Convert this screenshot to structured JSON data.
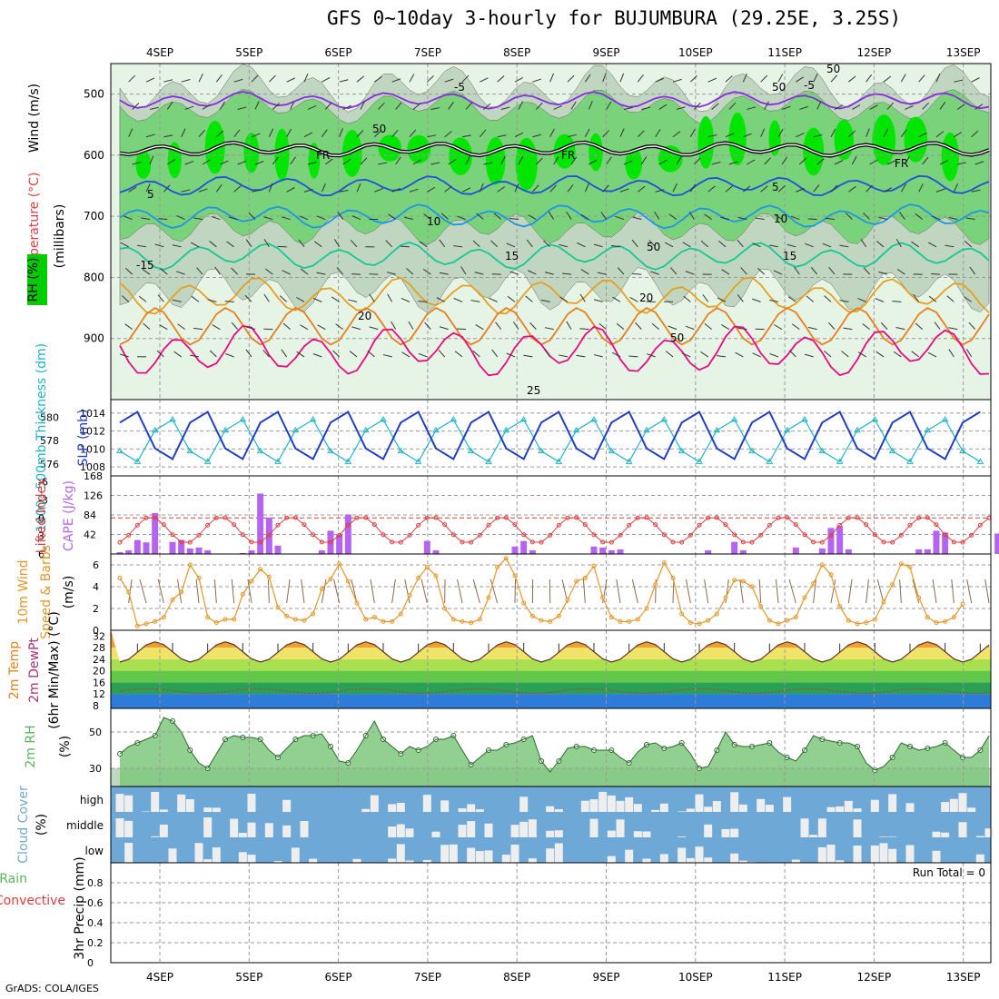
{
  "title": "GFS 0~10day 3-hourly for BUJUMBURA (29.25E, 3.25S)",
  "credit": "GrADS: COLA/IGES",
  "dates": [
    "4SEP",
    "5SEP",
    "6SEP",
    "7SEP",
    "8SEP",
    "9SEP",
    "10SEP",
    "11SEP",
    "12SEP",
    "13SEP"
  ],
  "colors": {
    "rh_light": "#e6f4e6",
    "rh_mid": "#c0d6c0",
    "rh_green": "#7ad27a",
    "rh_bright": "#00e600",
    "temp_purple": "#8a2be2",
    "temp_blue5": "#1e50dc",
    "temp_blue10": "#1e96e6",
    "temp_teal15": "#14c896",
    "temp_orange20": "#e6a020",
    "temp_orange": "#e68020",
    "temp_pink25": "#e60a82",
    "slp": "#1e3cc8",
    "thickness": "#1eb4c8",
    "lifted": "#e03c3c",
    "cape": "#b464f0",
    "wind": "#e69628",
    "rh2m": "#5ab45a",
    "cloud": "#6ea8d6"
  },
  "chart_data": [
    {
      "type": "contour",
      "name": "upper-air",
      "title": "Wind (m/s), Temperature (°C), RH (%)",
      "ylabel": "(millibars)",
      "ylim": [
        1000,
        450
      ],
      "yticks": [
        500,
        600,
        700,
        800,
        900
      ],
      "legend_labels": {
        "wind": "Wind (m/s)",
        "temperature": "Temperature (°C)",
        "rh": "RH (%)",
        "axis": "(millibars)"
      },
      "isotherms": [
        {
          "label": "-5",
          "mean_p": 510,
          "amp": 10
        },
        {
          "label": "FR",
          "mean_p": 590,
          "amp": 8
        },
        {
          "label": "5",
          "mean_p": 650,
          "amp": 12
        },
        {
          "label": "10",
          "mean_p": 700,
          "amp": 14
        },
        {
          "label": "15",
          "mean_p": 765,
          "amp": 16
        },
        {
          "label": "20",
          "mean_p": 830,
          "amp": 22
        },
        {
          "label": "25",
          "mean_p": 920,
          "amp": 30
        }
      ],
      "contour_labels": [
        "-5",
        "-5",
        "FR",
        "FR",
        "FR",
        "5",
        "5",
        "10",
        "10",
        "15",
        "15",
        "-15",
        "20",
        "20",
        "25",
        "50",
        "50",
        "50",
        "50",
        "50"
      ]
    },
    {
      "type": "line",
      "name": "slp-thickness",
      "series": [
        {
          "name": "SLP (mb)",
          "ylim": [
            1007,
            1015.5
          ],
          "yticks": [
            1008,
            1010,
            1012,
            1014
          ]
        },
        {
          "name": "1000~500mb Thickness (dm)",
          "ylim": [
            575,
            581.5
          ],
          "yticks": [
            576,
            578,
            580
          ]
        }
      ]
    },
    {
      "type": "bar+line",
      "name": "cape-lifted",
      "series": [
        {
          "name": "CAPE (J/kg)",
          "ylim": [
            0,
            168
          ],
          "yticks": [
            42,
            84,
            126,
            168
          ],
          "values": [
            4,
            8,
            30,
            25,
            88,
            0,
            26,
            30,
            12,
            14,
            8,
            0,
            0,
            0,
            2,
            8,
            130,
            78,
            18,
            0,
            0,
            0,
            0,
            8,
            50,
            42,
            85,
            0,
            0,
            0,
            0,
            0,
            0,
            0,
            0,
            28,
            8,
            0,
            0,
            0,
            0,
            0,
            0,
            0,
            0,
            16,
            28,
            8,
            0,
            0,
            0,
            0,
            0,
            0,
            16,
            14,
            8,
            10,
            0,
            0,
            0,
            0,
            0,
            0,
            0,
            0,
            0,
            8,
            0,
            0,
            26,
            8,
            0,
            0,
            0,
            0,
            0,
            14,
            0,
            0,
            12,
            56,
            60,
            10,
            0,
            0,
            0,
            0,
            0,
            0,
            0,
            10,
            10,
            50,
            46,
            0,
            0,
            0,
            0,
            0,
            44
          ]
        },
        {
          "name": "Lifted Index",
          "ylim": [
            6,
            -7
          ],
          "yticks": [
            -6,
            -3,
            0,
            3,
            6
          ]
        }
      ]
    },
    {
      "type": "line",
      "name": "wind10m",
      "series": [
        {
          "name": "10m Wind Speed & Barbs (m/s)",
          "ylim": [
            0,
            7
          ],
          "yticks": [
            0,
            2,
            4,
            6
          ],
          "values": [
            4.8,
            3.5,
            0.4,
            0.6,
            0.8,
            1.2,
            2.8,
            3.5,
            6.0,
            4.8,
            1.2,
            0.7,
            1.0,
            1.0,
            3.3,
            4.5,
            5.6,
            4.9,
            2.1,
            1.3,
            1.0,
            0.9,
            1.5,
            3.8,
            4.7,
            6.1,
            4.5,
            2.5,
            1.0,
            1.2,
            0.8,
            0.8,
            1.5,
            3.2,
            4.8,
            5.8,
            5.0,
            2.0,
            1.0,
            0.8,
            0.7,
            1.0,
            3.0,
            5.8,
            6.6,
            5.0,
            2.5,
            1.3,
            0.9,
            0.8,
            1.3,
            2.8,
            4.5,
            4.8,
            5.9,
            3.0,
            1.2,
            0.8,
            0.8,
            1.0,
            2.0,
            4.2,
            6.2,
            4.8,
            1.5,
            0.7,
            0.6,
            0.9,
            1.5,
            3.0,
            4.6,
            4.5,
            4.0,
            2.2,
            0.9,
            0.6,
            0.9,
            1.2,
            3.0,
            4.3,
            6.0,
            5.1,
            2.2,
            0.9,
            0.6,
            0.7,
            1.0,
            2.6,
            4.2,
            6.1,
            5.8,
            3.0,
            1.2,
            0.7,
            0.8,
            1.2,
            2.4
          ]
        }
      ]
    },
    {
      "type": "area",
      "name": "temp2m",
      "series": [
        {
          "name": "2m Temp",
          "ylim": [
            7,
            34
          ],
          "yticks": [
            8,
            12,
            16,
            20,
            24,
            28,
            32
          ]
        },
        {
          "name": "2m DewPt",
          "ylim": [
            7,
            34
          ]
        },
        {
          "name": "(6hr Min/Max) (°C)"
        }
      ]
    },
    {
      "type": "area",
      "name": "rh2m",
      "series": [
        {
          "name": "2m RH (%)",
          "ylim": [
            20,
            63
          ],
          "yticks": [
            30,
            50
          ],
          "values": [
            38,
            42,
            44,
            46,
            48,
            58,
            56,
            50,
            40,
            33,
            30,
            38,
            46,
            48,
            47,
            47,
            46,
            40,
            36,
            41,
            46,
            48,
            48,
            49,
            42,
            34,
            33,
            40,
            48,
            56,
            46,
            42,
            38,
            42,
            40,
            42,
            46,
            46,
            48,
            40,
            32,
            36,
            40,
            40,
            43,
            44,
            46,
            48,
            34,
            28,
            34,
            41,
            42,
            42,
            40,
            40,
            40,
            36,
            33,
            39,
            43,
            44,
            41,
            42,
            44,
            38,
            30,
            31,
            40,
            50,
            43,
            42,
            42,
            43,
            44,
            39,
            36,
            34,
            40,
            48,
            46,
            45,
            44,
            44,
            42,
            33,
            29,
            31,
            36,
            44,
            42,
            40,
            41,
            42,
            44,
            40,
            36,
            36,
            40,
            48
          ]
        }
      ]
    },
    {
      "type": "bar",
      "name": "cloud",
      "series": [
        {
          "name": "Cloud Cover (%)",
          "levels": [
            "high",
            "middle",
            "low"
          ]
        }
      ]
    },
    {
      "type": "bar",
      "name": "precip",
      "title": "Total / Rain Convective",
      "run_total": "Run Total = 0",
      "series": [
        {
          "name": "3hr Precip (mm)",
          "ylim": [
            0,
            1.0
          ],
          "yticks": [
            0,
            0.2,
            0.4,
            0.6,
            0.8
          ],
          "labels": [
            "Total / Rain",
            "Convective",
            "3hr Precip (mm)"
          ],
          "values": []
        }
      ]
    }
  ]
}
